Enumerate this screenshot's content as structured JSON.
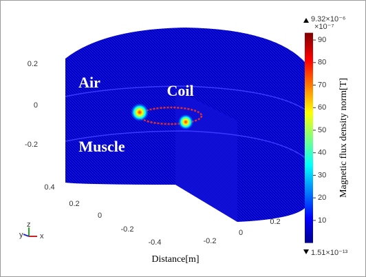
{
  "chart_data": {
    "type": "surface3d",
    "xlabel": "Distance[m]",
    "annotations": [
      "Air",
      "Coil",
      "Muscle"
    ],
    "zticks": [
      0.2,
      0,
      -0.2
    ],
    "xticks": [
      0.4,
      0.2,
      0,
      -0.2,
      -0.4
    ],
    "yticks": [
      -0.2,
      0,
      0.2
    ],
    "triad_labels": [
      "y",
      "z",
      "x"
    ],
    "colorbar": {
      "label": "Magnetic flux density norm[T]",
      "max_label": "9.32×10⁻⁶",
      "multiplier": "×10⁻⁷",
      "min_label": "1.51×10⁻¹³",
      "lim": [
        1.51e-06,
        93.2
      ],
      "ticks": [
        10,
        20,
        30,
        40,
        50,
        60,
        70,
        80,
        90
      ]
    }
  }
}
